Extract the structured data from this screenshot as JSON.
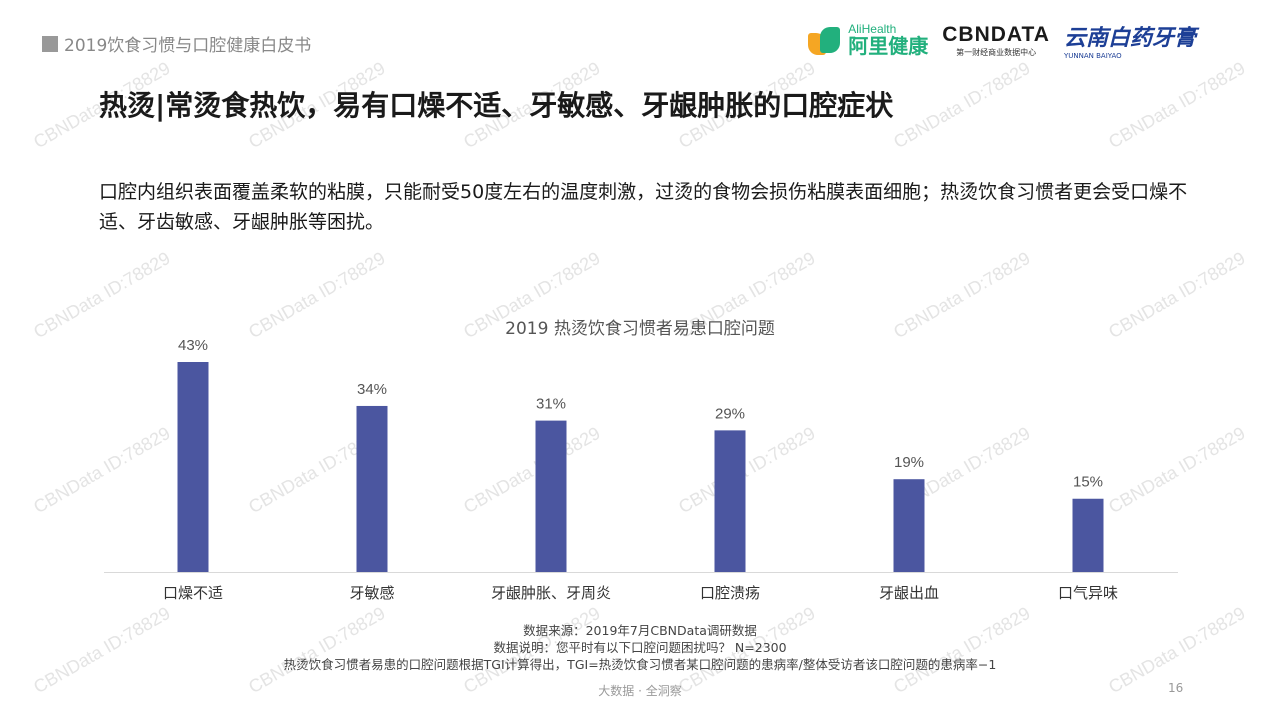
{
  "header": {
    "report_title": "2019饮食习惯与口腔健康白皮书",
    "logos": {
      "alihealth_en": "AliHealth",
      "alihealth_cn": "阿里健康",
      "cbndata_name": "CBNDATA",
      "cbndata_sub": "第一财经商业数据中心",
      "yunnan_cn": "云南白药牙膏",
      "yunnan_en": "YUNNAN BAIYAO"
    }
  },
  "main_title": "热烫|常烫食热饮，易有口燥不适、牙敏感、牙龈肿胀的口腔症状",
  "description": "口腔内组织表面覆盖柔软的粘膜，只能耐受50度左右的温度刺激，过烫的食物会损伤粘膜表面细胞；热烫饮食习惯者更会受口燥不适、牙齿敏感、牙龈肿胀等困扰。",
  "chart_data": {
    "type": "bar",
    "title": "2019 热烫饮食习惯者易患口腔问题",
    "categories": [
      "口燥不适",
      "牙敏感",
      "牙龈肿胀、牙周炎",
      "口腔溃疡",
      "牙龈出血",
      "口气异味"
    ],
    "values": [
      43,
      34,
      31,
      29,
      19,
      15
    ],
    "value_labels": [
      "43%",
      "34%",
      "31%",
      "29%",
      "19%",
      "15%"
    ],
    "unit": "%",
    "ylim": [
      0,
      50
    ],
    "grid": false,
    "legend": "none",
    "bar_color": "#4b56a0"
  },
  "footnotes": {
    "source": "数据来源：2019年7月CBNData调研数据",
    "question": "数据说明：您平时有以下口腔问题困扰吗？ N=2300",
    "tgi_note": "热烫饮食习惯者易患的口腔问题根据TGI计算得出，TGI=热烫饮食习惯者某口腔问题的患病率/整体受访者该口腔问题的患病率−1"
  },
  "footer": {
    "tagline": "大数据 · 全洞察",
    "page_number": "16"
  },
  "watermark_text": "CBNData ID:78829"
}
